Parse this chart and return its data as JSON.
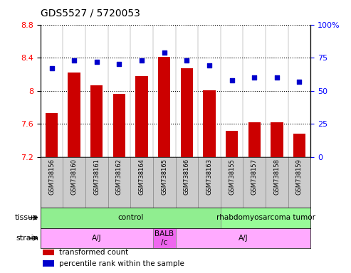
{
  "title": "GDS5527 / 5720053",
  "samples": [
    "GSM738156",
    "GSM738160",
    "GSM738161",
    "GSM738162",
    "GSM738164",
    "GSM738165",
    "GSM738166",
    "GSM738163",
    "GSM738155",
    "GSM738157",
    "GSM738158",
    "GSM738159"
  ],
  "bar_values": [
    7.73,
    8.22,
    8.07,
    7.96,
    8.18,
    8.41,
    8.27,
    8.01,
    7.52,
    7.62,
    7.62,
    7.48
  ],
  "dot_values": [
    67,
    73,
    72,
    70,
    73,
    79,
    73,
    69,
    58,
    60,
    60,
    57
  ],
  "bar_bottom": 7.2,
  "ylim_left": [
    7.2,
    8.8
  ],
  "ylim_right": [
    0,
    100
  ],
  "yticks_left": [
    7.2,
    7.6,
    8.0,
    8.4,
    8.8
  ],
  "yticks_right": [
    0,
    25,
    50,
    75,
    100
  ],
  "ytick_labels_left": [
    "7.2",
    "7.6",
    "8",
    "8.4",
    "8.8"
  ],
  "ytick_labels_right": [
    "0",
    "25",
    "50",
    "75",
    "100%"
  ],
  "bar_color": "#cc0000",
  "dot_color": "#0000cc",
  "tissue_groups": [
    {
      "label": "control",
      "start": 0,
      "end": 8,
      "color": "#90ee90"
    },
    {
      "label": "rhabdomyosarcoma tumor",
      "start": 8,
      "end": 12,
      "color": "#98fb98"
    }
  ],
  "strain_groups": [
    {
      "label": "A/J",
      "start": 0,
      "end": 5,
      "color": "#ffaaff"
    },
    {
      "label": "BALB\n/c",
      "start": 5,
      "end": 6,
      "color": "#ee66ee"
    },
    {
      "label": "A/J",
      "start": 6,
      "end": 12,
      "color": "#ffaaff"
    }
  ],
  "tissue_label": "tissue",
  "strain_label": "strain",
  "legend_bar_label": "transformed count",
  "legend_dot_label": "percentile rank within the sample",
  "sample_bg": "#cccccc",
  "bg_color": "#ffffff",
  "tick_fontsize": 8,
  "sample_fontsize": 6,
  "row_label_fontsize": 8,
  "group_label_fontsize": 7.5
}
